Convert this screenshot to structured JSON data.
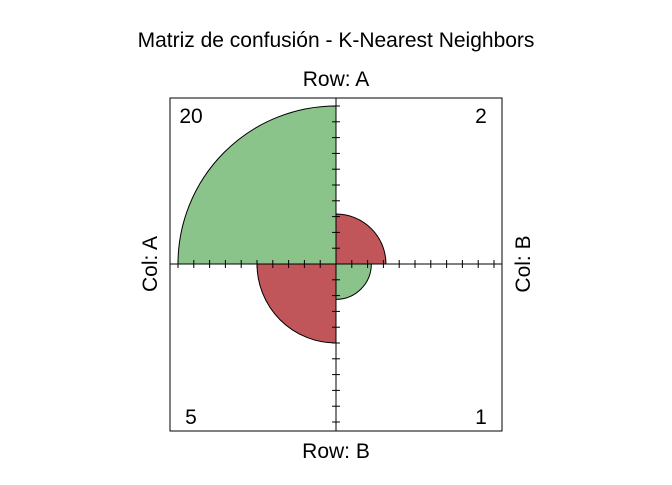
{
  "chart_data": {
    "type": "fourfold",
    "title": "Matriz de confusión - K-Nearest Neighbors",
    "row_variable_label": "Row",
    "col_variable_label": "Col",
    "rows": [
      "A",
      "B"
    ],
    "cols": [
      "A",
      "B"
    ],
    "labels": {
      "top": "Row: A",
      "bottom": "Row: B",
      "left": "Col: A",
      "right": "Col: B"
    },
    "cells": [
      {
        "row": "A",
        "col": "A",
        "count": 20,
        "count_label": "20",
        "color": "#8bc48a"
      },
      {
        "row": "A",
        "col": "B",
        "count": 2,
        "count_label": "2",
        "color": "#c0555a"
      },
      {
        "row": "B",
        "col": "A",
        "count": 5,
        "count_label": "5",
        "color": "#c0555a"
      },
      {
        "row": "B",
        "col": "B",
        "count": 1,
        "count_label": "1",
        "color": "#8bc48a"
      }
    ],
    "colors": {
      "agree": "#8bc48a",
      "disagree": "#c0555a",
      "frame": "#000000"
    },
    "grid": false
  }
}
